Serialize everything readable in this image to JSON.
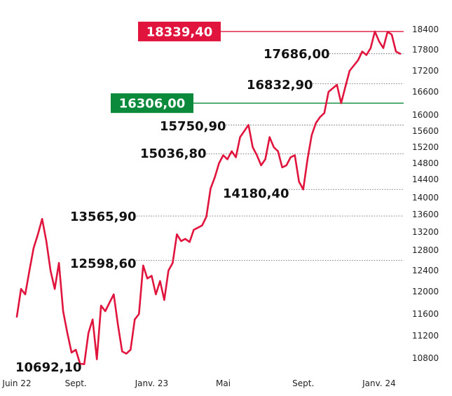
{
  "chart_data": {
    "type": "line",
    "y_ticks": [
      10800,
      11200,
      11600,
      12000,
      12400,
      12800,
      13200,
      13600,
      14000,
      14400,
      14800,
      15200,
      15600,
      16000,
      16600,
      17200,
      17800,
      18400
    ],
    "y_tick_labels": [
      "10800",
      "11200",
      "11600",
      "12000",
      "12400",
      "12800",
      "13200",
      "13600",
      "14000",
      "14400",
      "14800",
      "15200",
      "15600",
      "16000",
      "16600",
      "17200",
      "17800",
      "18400"
    ],
    "x_tick_labels": [
      {
        "label": "Juin 22",
        "index": 0
      },
      {
        "label": "Sept.",
        "index": 14
      },
      {
        "label": "Janv. 23",
        "index": 32
      },
      {
        "label": "Mai",
        "index": 49
      },
      {
        "label": "Sept.",
        "index": 68
      },
      {
        "label": "Janv. 24",
        "index": 86
      }
    ],
    "series": [
      {
        "color": "#e0143c",
        "values": [
          11550,
          12050,
          11950,
          12400,
          12850,
          13150,
          13500,
          13000,
          12400,
          12050,
          12550,
          11650,
          11250,
          10900,
          10950,
          10700,
          10692.1,
          11250,
          11500,
          10780,
          11750,
          11650,
          11800,
          11950,
          11400,
          10920,
          10880,
          10950,
          11500,
          11600,
          12500,
          12250,
          12300,
          11950,
          12200,
          11850,
          12400,
          12550,
          13150,
          13000,
          13050,
          12980,
          13250,
          13300,
          13350,
          13550,
          14200,
          14450,
          14800,
          15000,
          14900,
          15100,
          14950,
          15450,
          15600,
          15750.9,
          15200,
          15000,
          14750,
          14900,
          15450,
          15200,
          15100,
          14700,
          14750,
          14950,
          15000,
          14350,
          14180.4,
          14900,
          15500,
          15800,
          15950,
          16050,
          16600,
          16700,
          16800,
          16306,
          16750,
          17200,
          17350,
          17500,
          17750,
          17650,
          17850,
          18339.4,
          18050,
          17850,
          18330,
          18250,
          17750,
          17686
        ]
      }
    ],
    "annotations": [
      {
        "text": "10692,10",
        "value": 10692.1,
        "index": 16,
        "box": "none"
      },
      {
        "text": "12598,60",
        "value": 12598.6,
        "index": 36,
        "box": "none"
      },
      {
        "text": "13565,90",
        "value": 13565.9,
        "index": 6,
        "box": "none"
      },
      {
        "text": "15036,80",
        "value": 15036.8,
        "index": 50,
        "box": "none"
      },
      {
        "text": "15750,90",
        "value": 15750.9,
        "index": 55,
        "box": "none"
      },
      {
        "text": "14180,40",
        "value": 14180.4,
        "index": 68,
        "box": "none"
      },
      {
        "text": "16832,90",
        "value": 16832.9,
        "index": 76,
        "box": "none"
      },
      {
        "text": "17686,00",
        "value": 17686.0,
        "index": 91,
        "box": "none"
      },
      {
        "text": "16306,00",
        "value": 16306.0,
        "index": 77,
        "box": "green"
      },
      {
        "text": "18339,40",
        "value": 18339.4,
        "index": 85,
        "box": "red"
      }
    ],
    "colors": {
      "line": "#e0143c",
      "red_box": "#e0143c",
      "green_box": "#0a8a3a",
      "gridline": "#555555"
    },
    "grid": "dotted horizontal leader lines for annotated levels"
  }
}
